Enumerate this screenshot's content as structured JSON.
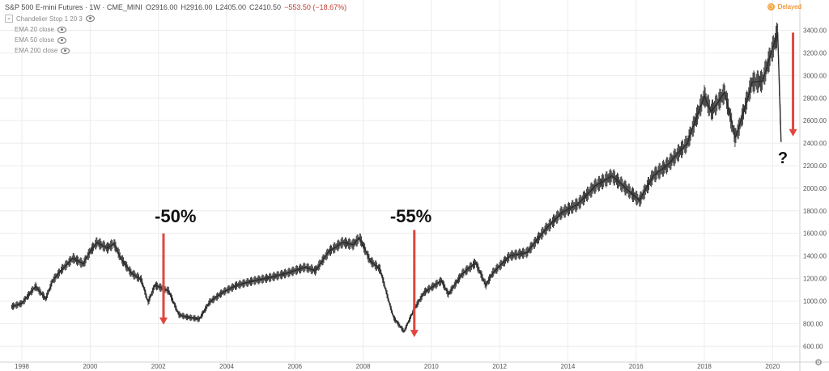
{
  "header": {
    "title": "S&P 500 E-mini Futures · 1W · CME_MINI",
    "open": "O2916.00",
    "high": "H2916.00",
    "low": "L2405.00",
    "close": "C2410.50",
    "change": "−553.50 (−18.67%)"
  },
  "indicators": [
    {
      "label": "Chandelier Stop 1 20 3",
      "icon": "eye-icon"
    },
    {
      "label": "EMA 20 close",
      "icon": "eye-icon"
    },
    {
      "label": "EMA 50 close",
      "icon": "eye-icon"
    },
    {
      "label": "EMA 200 close",
      "icon": "eye-icon"
    }
  ],
  "status": {
    "delayed": "Delayed"
  },
  "annotations": [
    {
      "text": "-50%",
      "x": 2002.5,
      "y": 1700
    },
    {
      "text": "-55%",
      "x": 2009.4,
      "y": 1700
    },
    {
      "text": "?",
      "x": 2020.3,
      "y": 2220
    }
  ],
  "arrows": [
    {
      "x": 2002.15,
      "y_from": 1600,
      "y_to": 790
    },
    {
      "x": 2009.5,
      "y_from": 1630,
      "y_to": 680
    },
    {
      "x": 2020.6,
      "y_from": 3380,
      "y_to": 2460
    }
  ],
  "colors": {
    "bars": "#2b2b2b",
    "arrow": "#e0463f",
    "grid": "#ececec",
    "text": "#333333"
  },
  "chart_data": {
    "type": "line",
    "title": "S&P 500 E-mini Futures",
    "xlim": [
      1997.5,
      2020.8
    ],
    "ylim": [
      480,
      3540
    ],
    "x_ticks": [
      1998,
      2000,
      2002,
      2004,
      2006,
      2008,
      2010,
      2012,
      2014,
      2016,
      2018,
      2020
    ],
    "y_ticks": [
      600,
      800,
      1000,
      1200,
      1400,
      1600,
      1800,
      2000,
      2200,
      2400,
      2600,
      2800,
      3000,
      3200,
      3400
    ],
    "grid": true,
    "series": [
      {
        "x": [
          1997.7,
          1998.0,
          1998.4,
          1998.7,
          1998.9,
          1999.2,
          1999.5,
          1999.8,
          2000.0,
          2000.2,
          2000.5,
          2000.7,
          2000.9,
          2001.2,
          2001.5,
          2001.7,
          2001.9,
          2002.3,
          2002.6,
          2002.8,
          2003.2,
          2003.5,
          2003.9,
          2004.3,
          2004.8,
          2005.3,
          2005.8,
          2006.3,
          2006.6,
          2007.0,
          2007.4,
          2007.7,
          2007.9,
          2008.2,
          2008.5,
          2008.8,
          2008.9,
          2009.2,
          2009.5,
          2009.8,
          2010.3,
          2010.5,
          2010.9,
          2011.3,
          2011.6,
          2011.8,
          2012.3,
          2012.8,
          2013.3,
          2013.8,
          2014.3,
          2014.8,
          2015.3,
          2015.7,
          2016.1,
          2016.5,
          2016.9,
          2017.5,
          2018.0,
          2018.2,
          2018.6,
          2018.9,
          2019.0,
          2019.4,
          2019.7,
          2020.1,
          2020.15,
          2020.2,
          2020.25
        ],
        "y": [
          950,
          980,
          1130,
          1020,
          1180,
          1290,
          1380,
          1330,
          1440,
          1520,
          1470,
          1510,
          1380,
          1250,
          1190,
          990,
          1140,
          1090,
          880,
          860,
          840,
          990,
          1080,
          1140,
          1180,
          1210,
          1250,
          1300,
          1270,
          1440,
          1520,
          1500,
          1560,
          1360,
          1280,
          950,
          850,
          730,
          930,
          1080,
          1180,
          1060,
          1240,
          1340,
          1140,
          1250,
          1400,
          1430,
          1620,
          1780,
          1860,
          2020,
          2110,
          2000,
          1890,
          2110,
          2200,
          2400,
          2820,
          2680,
          2850,
          2450,
          2520,
          2940,
          2950,
          3330,
          3380,
          2900,
          2410
        ]
      }
    ]
  }
}
